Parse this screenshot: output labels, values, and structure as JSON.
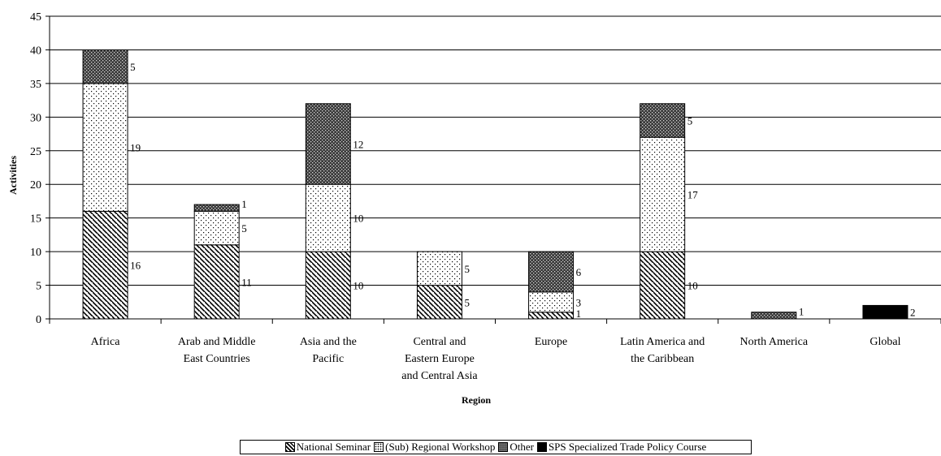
{
  "chart_data": {
    "type": "bar",
    "stacked": true,
    "xlabel": "Region",
    "ylabel": "Activities",
    "ylim": [
      0,
      45
    ],
    "yticks": [
      0,
      5,
      10,
      15,
      20,
      25,
      30,
      35,
      40,
      45
    ],
    "grid": true,
    "legend_position": "bottom",
    "categories": [
      [
        "Africa"
      ],
      [
        "Arab and Middle",
        "East Countries"
      ],
      [
        "Asia and the",
        "Pacific"
      ],
      [
        "Central and",
        "Eastern Europe",
        "and Central Asia"
      ],
      [
        "Europe"
      ],
      [
        "Latin America and",
        "the Caribbean"
      ],
      [
        "North America"
      ],
      [
        "Global"
      ]
    ],
    "series": [
      {
        "name": "National Seminar",
        "pattern": "hatch",
        "values": [
          16,
          11,
          10,
          5,
          1,
          10,
          0,
          0
        ]
      },
      {
        "name": "(Sub) Regional Workshop",
        "pattern": "dots",
        "values": [
          19,
          5,
          10,
          5,
          3,
          17,
          0,
          0
        ]
      },
      {
        "name": "Other",
        "pattern": "crosshatch-dark",
        "values": [
          5,
          1,
          12,
          0,
          6,
          5,
          1,
          0
        ]
      },
      {
        "name": "SPS Specialized Trade Policy Course",
        "pattern": "solid-black",
        "values": [
          0,
          0,
          0,
          0,
          0,
          0,
          0,
          2
        ]
      }
    ]
  }
}
